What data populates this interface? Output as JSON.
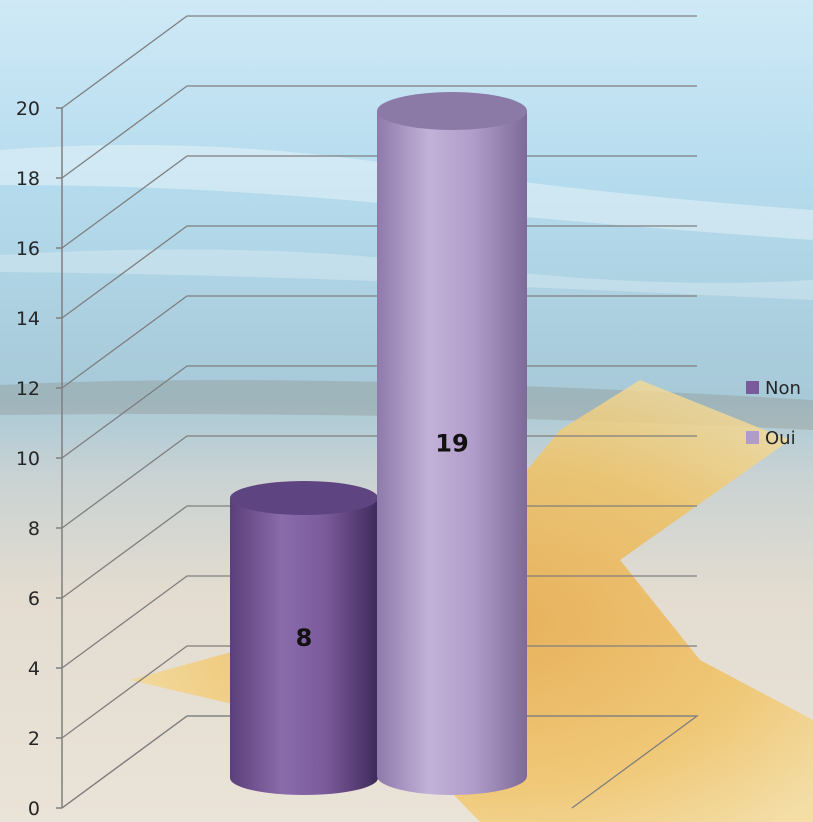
{
  "chart_data": {
    "type": "bar",
    "style": "3d-cylinder",
    "categories": [
      ""
    ],
    "series": [
      {
        "name": "Non",
        "values": [
          8
        ],
        "color": "#7a5a9a"
      },
      {
        "name": "Oui",
        "values": [
          19
        ],
        "color": "#b09cc9"
      }
    ],
    "data_labels": [
      "8",
      "19"
    ],
    "ylim": [
      0,
      20
    ],
    "y_ticks": [
      "0",
      "2",
      "4",
      "6",
      "8",
      "10",
      "12",
      "14",
      "16",
      "18",
      "20"
    ],
    "grid": true,
    "legend_position": "right",
    "background": "beach photo with starfish",
    "title": "",
    "xlabel": "",
    "ylabel": ""
  }
}
